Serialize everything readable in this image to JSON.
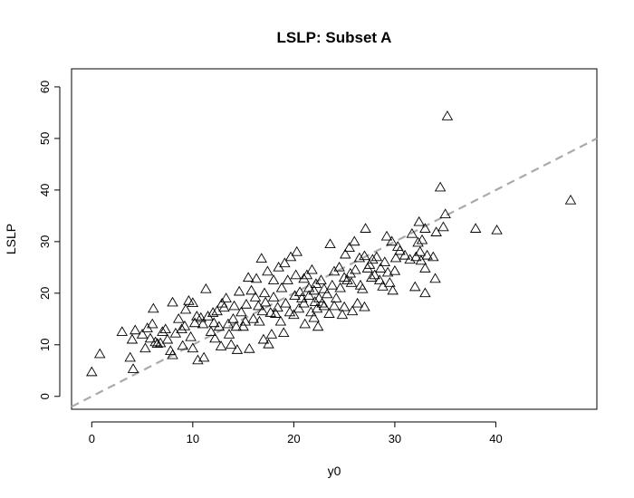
{
  "chart_data": {
    "type": "scatter",
    "title": "LSLP: Subset A",
    "xlabel": "y0",
    "ylabel": "LSLP",
    "xlim": [
      -2,
      50
    ],
    "ylim": [
      -2.5,
      63.5
    ],
    "x_ticks": [
      0,
      10,
      20,
      30,
      40
    ],
    "y_ticks": [
      0,
      10,
      20,
      30,
      40,
      50,
      60
    ],
    "marker": "open-triangle",
    "marker_color": "#000000",
    "reference_line": {
      "type": "identity",
      "style": "dashed",
      "color": "#aaaaaa",
      "slope": 1,
      "intercept": 0
    },
    "points": [
      [
        0.0,
        4.7
      ],
      [
        0.8,
        8.2
      ],
      [
        3.0,
        12.5
      ],
      [
        3.8,
        7.5
      ],
      [
        4.0,
        11.0
      ],
      [
        4.1,
        5.3
      ],
      [
        4.3,
        12.8
      ],
      [
        5.0,
        12.0
      ],
      [
        5.3,
        9.3
      ],
      [
        5.5,
        13.2
      ],
      [
        5.8,
        11.2
      ],
      [
        6.0,
        14.0
      ],
      [
        6.1,
        17.0
      ],
      [
        6.3,
        10.5
      ],
      [
        6.5,
        10.2
      ],
      [
        6.8,
        10.3
      ],
      [
        7.0,
        12.5
      ],
      [
        7.3,
        13.0
      ],
      [
        7.5,
        11.0
      ],
      [
        7.8,
        8.8
      ],
      [
        8.0,
        18.2
      ],
      [
        8.0,
        8.0
      ],
      [
        8.3,
        12.2
      ],
      [
        8.6,
        15.0
      ],
      [
        8.9,
        13.0
      ],
      [
        9.0,
        9.8
      ],
      [
        9.2,
        13.6
      ],
      [
        9.3,
        16.8
      ],
      [
        9.6,
        18.5
      ],
      [
        9.8,
        11.5
      ],
      [
        10.0,
        18.1
      ],
      [
        10.0,
        9.3
      ],
      [
        10.2,
        14.2
      ],
      [
        10.4,
        15.5
      ],
      [
        10.5,
        7.0
      ],
      [
        10.8,
        15.2
      ],
      [
        11.0,
        14.0
      ],
      [
        11.1,
        7.5
      ],
      [
        11.3,
        20.8
      ],
      [
        11.5,
        15.5
      ],
      [
        11.8,
        12.5
      ],
      [
        12.0,
        16.2
      ],
      [
        12.1,
        14.2
      ],
      [
        12.2,
        11.2
      ],
      [
        12.4,
        16.5
      ],
      [
        12.6,
        13.5
      ],
      [
        12.8,
        9.7
      ],
      [
        12.9,
        18.0
      ],
      [
        13.1,
        17.2
      ],
      [
        13.3,
        19.0
      ],
      [
        13.5,
        14.0
      ],
      [
        13.6,
        12.0
      ],
      [
        13.8,
        10.0
      ],
      [
        14.0,
        15.0
      ],
      [
        14.1,
        17.5
      ],
      [
        14.3,
        13.5
      ],
      [
        14.4,
        9.0
      ],
      [
        14.6,
        20.3
      ],
      [
        14.8,
        16.3
      ],
      [
        15.0,
        13.5
      ],
      [
        15.2,
        14.5
      ],
      [
        15.3,
        17.8
      ],
      [
        15.5,
        23.0
      ],
      [
        15.6,
        9.2
      ],
      [
        15.8,
        20.5
      ],
      [
        16.0,
        15.0
      ],
      [
        16.2,
        19.2
      ],
      [
        16.3,
        22.8
      ],
      [
        16.5,
        17.5
      ],
      [
        16.6,
        14.5
      ],
      [
        16.8,
        26.7
      ],
      [
        16.9,
        16.5
      ],
      [
        17.0,
        11.0
      ],
      [
        17.1,
        20.0
      ],
      [
        17.2,
        18.2
      ],
      [
        17.4,
        24.2
      ],
      [
        17.5,
        10.1
      ],
      [
        17.7,
        16.2
      ],
      [
        17.8,
        12.0
      ],
      [
        18.0,
        19.2
      ],
      [
        18.0,
        22.5
      ],
      [
        18.2,
        16.0
      ],
      [
        18.4,
        17.2
      ],
      [
        18.5,
        25.0
      ],
      [
        18.7,
        14.5
      ],
      [
        18.8,
        21.0
      ],
      [
        19.0,
        12.3
      ],
      [
        19.1,
        25.8
      ],
      [
        19.2,
        18.0
      ],
      [
        19.4,
        22.5
      ],
      [
        19.6,
        16.3
      ],
      [
        19.7,
        27.0
      ],
      [
        20.0,
        15.8
      ],
      [
        20.1,
        19.5
      ],
      [
        20.2,
        23.5
      ],
      [
        20.3,
        28.0
      ],
      [
        20.5,
        17.0
      ],
      [
        20.6,
        20.2
      ],
      [
        20.8,
        19.0
      ],
      [
        21.0,
        22.8
      ],
      [
        21.0,
        18.0
      ],
      [
        21.1,
        14.0
      ],
      [
        21.3,
        23.5
      ],
      [
        21.5,
        21.0
      ],
      [
        21.5,
        19.5
      ],
      [
        21.7,
        16.3
      ],
      [
        21.8,
        24.5
      ],
      [
        22.0,
        20.5
      ],
      [
        22.0,
        15.2
      ],
      [
        22.1,
        18.3
      ],
      [
        22.2,
        21.8
      ],
      [
        22.3,
        17.0
      ],
      [
        22.4,
        13.5
      ],
      [
        22.5,
        19.0
      ],
      [
        22.7,
        22.5
      ],
      [
        22.8,
        18.0
      ],
      [
        23.0,
        20.8
      ],
      [
        23.0,
        17.5
      ],
      [
        23.3,
        19.8
      ],
      [
        23.5,
        16.0
      ],
      [
        23.6,
        29.5
      ],
      [
        23.8,
        21.5
      ],
      [
        24.0,
        24.2
      ],
      [
        24.0,
        17.5
      ],
      [
        24.2,
        19.0
      ],
      [
        24.5,
        25.0
      ],
      [
        24.6,
        21.0
      ],
      [
        24.8,
        15.8
      ],
      [
        25.0,
        23.0
      ],
      [
        25.0,
        17.3
      ],
      [
        25.1,
        27.5
      ],
      [
        25.3,
        22.5
      ],
      [
        25.5,
        28.8
      ],
      [
        25.6,
        23.8
      ],
      [
        25.7,
        22.0
      ],
      [
        25.8,
        16.5
      ],
      [
        26.0,
        30.0
      ],
      [
        26.1,
        24.5
      ],
      [
        26.3,
        18.0
      ],
      [
        26.5,
        26.8
      ],
      [
        26.6,
        21.5
      ],
      [
        26.8,
        20.8
      ],
      [
        27.0,
        27.2
      ],
      [
        27.0,
        17.3
      ],
      [
        27.1,
        32.5
      ],
      [
        27.3,
        24.8
      ],
      [
        27.5,
        25.5
      ],
      [
        27.7,
        23.0
      ],
      [
        27.8,
        26.5
      ],
      [
        28.0,
        23.5
      ],
      [
        28.2,
        27.0
      ],
      [
        28.5,
        22.5
      ],
      [
        28.6,
        24.8
      ],
      [
        28.8,
        21.3
      ],
      [
        29.0,
        26.0
      ],
      [
        29.2,
        31.0
      ],
      [
        29.3,
        24.0
      ],
      [
        29.5,
        22.0
      ],
      [
        29.7,
        30.0
      ],
      [
        29.8,
        20.5
      ],
      [
        30.0,
        24.3
      ],
      [
        30.1,
        26.8
      ],
      [
        30.3,
        29.0
      ],
      [
        30.5,
        28.2
      ],
      [
        31.0,
        27.3
      ],
      [
        31.5,
        26.5
      ],
      [
        31.7,
        31.5
      ],
      [
        32.0,
        21.2
      ],
      [
        32.1,
        27.0
      ],
      [
        32.3,
        29.8
      ],
      [
        32.4,
        33.8
      ],
      [
        32.5,
        28.0
      ],
      [
        32.6,
        26.3
      ],
      [
        32.7,
        30.3
      ],
      [
        33.0,
        24.8
      ],
      [
        33.0,
        32.5
      ],
      [
        33.0,
        20.0
      ],
      [
        33.2,
        27.3
      ],
      [
        33.8,
        27.0
      ],
      [
        34.0,
        22.8
      ],
      [
        34.1,
        31.8
      ],
      [
        34.5,
        40.5
      ],
      [
        34.8,
        32.8
      ],
      [
        35.0,
        35.3
      ],
      [
        35.2,
        54.3
      ],
      [
        38.0,
        32.5
      ],
      [
        40.1,
        32.2
      ],
      [
        47.4,
        38.0
      ]
    ]
  }
}
